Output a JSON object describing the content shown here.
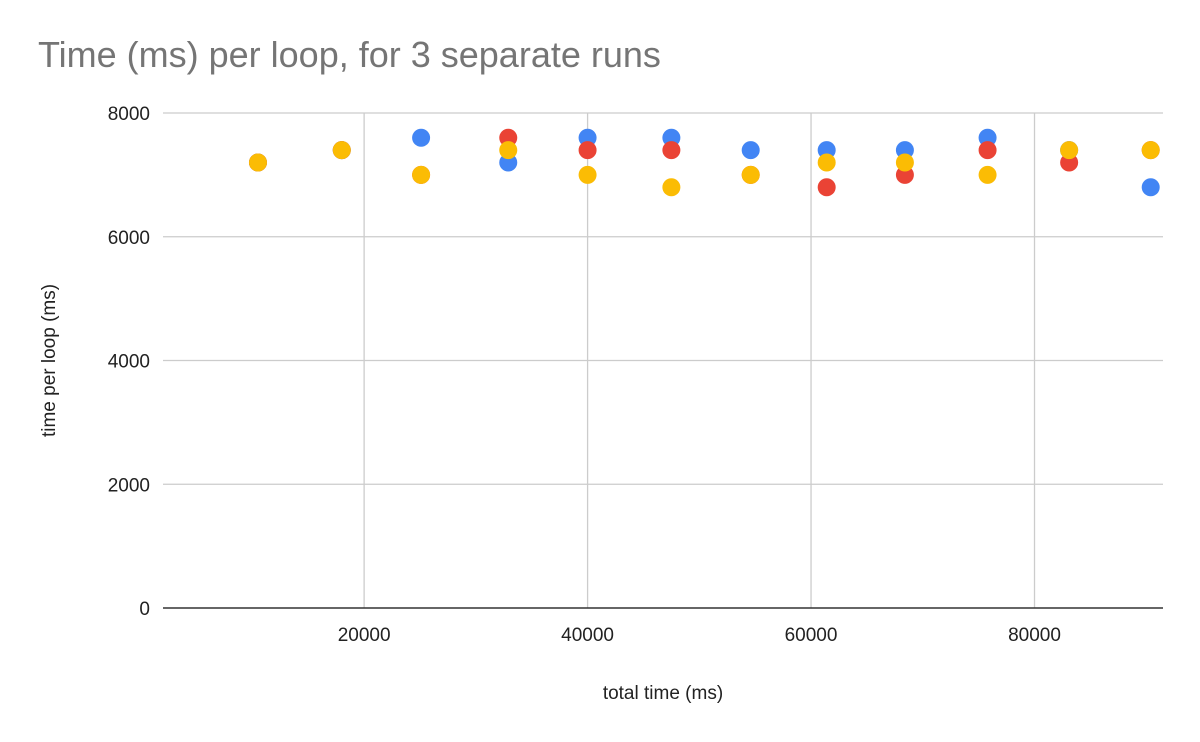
{
  "chart_data": {
    "type": "scatter",
    "title": "Time (ms) per loop, for 3 separate runs",
    "xlabel": "total time (ms)",
    "ylabel": "time per loop (ms)",
    "xlim": [
      2000,
      91500
    ],
    "ylim": [
      0,
      8000
    ],
    "x_ticks": [
      20000,
      40000,
      60000,
      80000
    ],
    "y_ticks": [
      0,
      2000,
      4000,
      6000,
      8000
    ],
    "grid": true,
    "legend": "none",
    "series": [
      {
        "color": "#4285f4",
        "points": [
          [
            10500,
            7200
          ],
          [
            18000,
            7400
          ],
          [
            25100,
            7600
          ],
          [
            32900,
            7200
          ],
          [
            40000,
            7600
          ],
          [
            47500,
            7600
          ],
          [
            54600,
            7400
          ],
          [
            61400,
            7400
          ],
          [
            68400,
            7400
          ],
          [
            75800,
            7600
          ],
          [
            83100,
            7400
          ],
          [
            90400,
            6800
          ]
        ]
      },
      {
        "color": "#ea4335",
        "points": [
          [
            10500,
            7200
          ],
          [
            18000,
            7400
          ],
          [
            25100,
            7000
          ],
          [
            32900,
            7600
          ],
          [
            40000,
            7400
          ],
          [
            47500,
            7400
          ],
          [
            54600,
            7000
          ],
          [
            61400,
            6800
          ],
          [
            68400,
            7000
          ],
          [
            75800,
            7400
          ],
          [
            83100,
            7200
          ],
          [
            90400,
            7400
          ]
        ]
      },
      {
        "color": "#fbbc04",
        "points": [
          [
            10500,
            7200
          ],
          [
            18000,
            7400
          ],
          [
            25100,
            7000
          ],
          [
            32900,
            7400
          ],
          [
            40000,
            7000
          ],
          [
            47500,
            6800
          ],
          [
            54600,
            7000
          ],
          [
            61400,
            7200
          ],
          [
            68400,
            7200
          ],
          [
            75800,
            7000
          ],
          [
            83100,
            7400
          ],
          [
            90400,
            7400
          ]
        ]
      }
    ]
  }
}
